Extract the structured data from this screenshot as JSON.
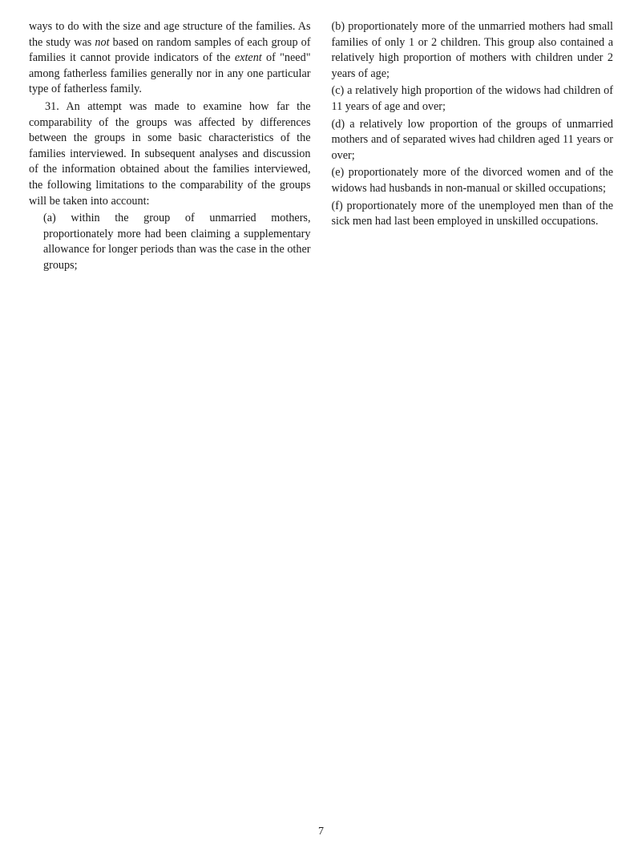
{
  "left_column": {
    "para1_part1": "ways to do with the size and age structure of the families. As the study was ",
    "para1_italic": "not",
    "para1_part2": " based on random samples of each group of families it cannot provide indicators of the ",
    "para1_italic2": "extent",
    "para1_part3": " of \"need\" among fatherless families generally nor in any one particular type of fatherless family.",
    "para2": "31. An attempt was made to examine how far the comparability of the groups was affected by differences between the groups in some basic characteristics of the families interviewed. In subsequent analyses and discussion of the information obtained about the families interviewed, the following limitations to the comparability of the groups will be taken into account:",
    "sub_a": "(a) within the group of unmarried mothers, proportionately more had been claiming a supplementary allowance for longer periods than was the case in the other groups;"
  },
  "right_column": {
    "sub_b": "(b) proportionately more of the unmarried mothers had small families of only 1 or 2 children. This group also contained a relatively high proportion of mothers with children under 2 years of age;",
    "sub_c": "(c) a relatively high proportion of the widows had children of 11 years of age and over;",
    "sub_d": "(d) a relatively low proportion of the groups of unmarried mothers and of separated wives had children aged 11 years or over;",
    "sub_e": "(e) proportionately more of the divorced women and of the widows had husbands in non-manual or skilled occupations;",
    "sub_f": "(f) proportionately more of the unemployed men than of the sick men had last been employed in unskilled occupations."
  },
  "page_number": "7"
}
